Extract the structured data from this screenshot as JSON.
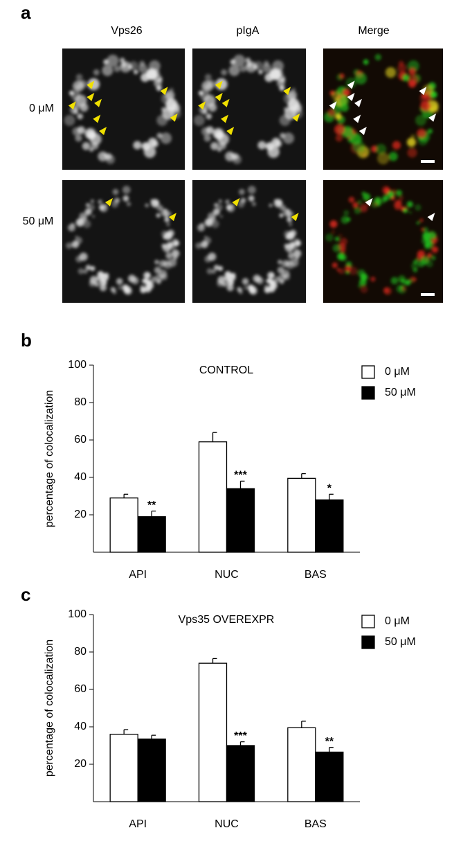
{
  "panel_a": {
    "label": "a",
    "columns": [
      "Vps26",
      "pIgA",
      "Merge"
    ],
    "rows": [
      "0 μM",
      "50 μM"
    ]
  },
  "chart_data": [
    {
      "type": "bar",
      "panel_label": "b",
      "title": "CONTROL",
      "y_label": "percentage of colocalization",
      "categories": [
        "API",
        "NUC",
        "BAS"
      ],
      "series": [
        {
          "name": "0 μM",
          "color": "#ffffff",
          "values": [
            29,
            59,
            39.5
          ],
          "errors": [
            2,
            5,
            2.5
          ],
          "significance": [
            null,
            null,
            null
          ]
        },
        {
          "name": "50 μM",
          "color": "#000000",
          "values": [
            19,
            34,
            28
          ],
          "errors": [
            3,
            4,
            3
          ],
          "significance": [
            "**",
            "***",
            "*"
          ]
        }
      ],
      "ylim": [
        0,
        100
      ],
      "yticks": [
        20,
        40,
        60,
        80,
        100
      ],
      "legend": "upper right"
    },
    {
      "type": "bar",
      "panel_label": "c",
      "title": "Vps35 OVEREXPR",
      "y_label": "percentage of colocalization",
      "categories": [
        "API",
        "NUC",
        "BAS"
      ],
      "series": [
        {
          "name": "0 μM",
          "color": "#ffffff",
          "values": [
            36,
            74,
            39.5
          ],
          "errors": [
            2.5,
            2.5,
            3.5
          ],
          "significance": [
            null,
            null,
            null
          ]
        },
        {
          "name": "50 μM",
          "color": "#000000",
          "values": [
            33.5,
            30,
            26.5
          ],
          "errors": [
            2,
            2,
            2.5
          ],
          "significance": [
            null,
            "***",
            "**"
          ]
        }
      ],
      "ylim": [
        0,
        100
      ],
      "yticks": [
        20,
        40,
        60,
        80,
        100
      ],
      "legend": "upper right"
    }
  ]
}
